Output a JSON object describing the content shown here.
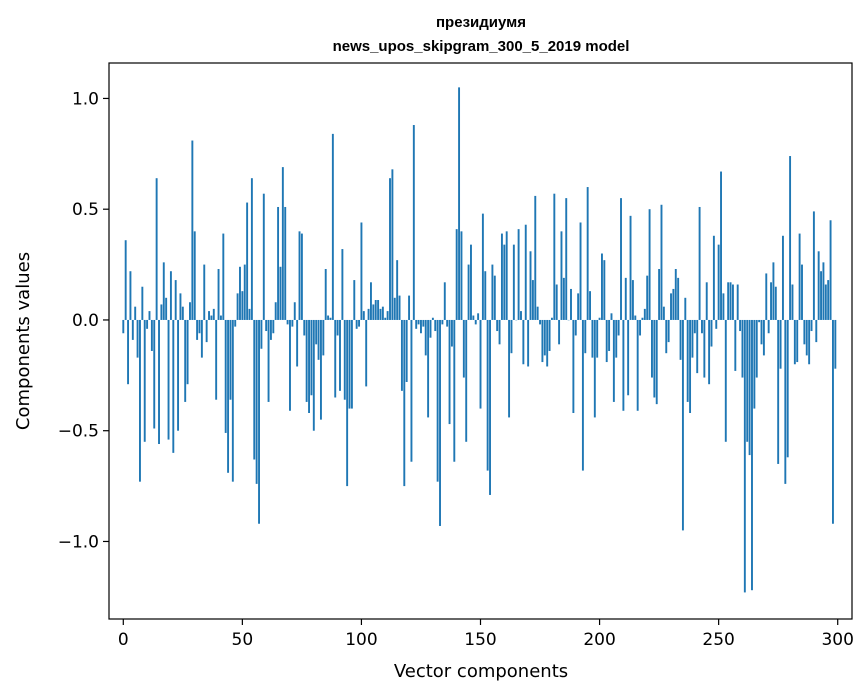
{
  "chart_data": {
    "type": "bar",
    "title_line1": "президиумя",
    "title_line2": "news_upos_skipgram_300_5_2019 model",
    "xlabel": "Vector components",
    "ylabel": "Components values",
    "xlim": [
      -6,
      306
    ],
    "ylim": [
      -1.35,
      1.16
    ],
    "xticks": [
      0,
      50,
      100,
      150,
      200,
      250,
      300
    ],
    "xtick_labels": [
      "0",
      "50",
      "100",
      "150",
      "200",
      "250",
      "300"
    ],
    "yticks": [
      -1.0,
      -0.5,
      0.0,
      0.5,
      1.0
    ],
    "ytick_labels": [
      "−1.0",
      "−0.5",
      "0.0",
      "0.5",
      "1.0"
    ],
    "bar_color": "#1f77b4",
    "values": [
      -0.06,
      0.36,
      -0.29,
      0.22,
      -0.09,
      0.06,
      -0.17,
      -0.73,
      0.15,
      -0.55,
      -0.04,
      0.04,
      -0.14,
      -0.49,
      0.64,
      -0.56,
      0.07,
      0.26,
      0.1,
      -0.54,
      0.22,
      -0.6,
      0.18,
      -0.5,
      0.12,
      0.06,
      -0.37,
      -0.29,
      0.08,
      0.81,
      0.4,
      -0.09,
      -0.06,
      -0.17,
      0.25,
      -0.1,
      0.04,
      0.02,
      0.05,
      -0.36,
      0.23,
      0.02,
      0.39,
      -0.51,
      -0.69,
      -0.36,
      -0.73,
      -0.03,
      0.12,
      0.24,
      0.13,
      0.25,
      0.53,
      0.05,
      0.64,
      -0.63,
      -0.74,
      -0.92,
      -0.13,
      0.57,
      -0.05,
      -0.37,
      -0.09,
      -0.06,
      0.08,
      0.51,
      0.24,
      0.69,
      0.51,
      -0.02,
      -0.41,
      -0.03,
      0.08,
      -0.21,
      0.4,
      0.39,
      -0.07,
      -0.37,
      -0.42,
      -0.34,
      -0.5,
      -0.11,
      -0.18,
      -0.45,
      -0.16,
      0.23,
      0.02,
      0.01,
      0.84,
      -0.35,
      -0.07,
      -0.32,
      0.32,
      -0.36,
      -0.75,
      -0.4,
      -0.4,
      0.18,
      -0.04,
      -0.03,
      0.44,
      0.04,
      -0.3,
      0.05,
      0.17,
      0.07,
      0.09,
      0.09,
      0.05,
      0.06,
      0.01,
      0.04,
      0.64,
      0.68,
      0.1,
      0.27,
      0.11,
      -0.32,
      -0.75,
      -0.28,
      0.11,
      -0.64,
      0.88,
      -0.04,
      -0.02,
      -0.06,
      -0.03,
      -0.16,
      -0.44,
      -0.08,
      0.01,
      -0.05,
      -0.73,
      -0.93,
      -0.02,
      0.17,
      -0.03,
      -0.47,
      -0.12,
      -0.64,
      0.41,
      1.05,
      0.4,
      -0.26,
      -0.55,
      0.25,
      0.34,
      0.02,
      -0.02,
      0.03,
      -0.4,
      0.48,
      0.22,
      -0.68,
      -0.79,
      0.25,
      0.2,
      -0.05,
      -0.11,
      0.39,
      0.34,
      0.4,
      -0.44,
      -0.15,
      0.34,
      0.0,
      0.41,
      0.04,
      -0.2,
      0.43,
      -0.21,
      0.31,
      0.18,
      0.56,
      0.06,
      -0.02,
      -0.19,
      -0.16,
      -0.21,
      -0.14,
      0.01,
      0.57,
      0.16,
      -0.11,
      0.4,
      0.19,
      0.55,
      0.0,
      0.14,
      -0.42,
      -0.07,
      0.12,
      0.44,
      -0.68,
      -0.15,
      0.6,
      0.13,
      -0.17,
      -0.44,
      -0.17,
      0.01,
      0.3,
      0.27,
      -0.19,
      -0.14,
      0.03,
      -0.37,
      -0.17,
      -0.07,
      0.55,
      -0.41,
      0.19,
      -0.34,
      0.47,
      0.18,
      0.02,
      -0.41,
      -0.07,
      0.01,
      0.05,
      0.2,
      0.5,
      -0.26,
      -0.35,
      -0.38,
      0.23,
      0.52,
      0.06,
      -0.15,
      -0.1,
      0.12,
      0.14,
      0.23,
      0.19,
      -0.18,
      -0.95,
      0.1,
      -0.37,
      -0.42,
      -0.17,
      -0.06,
      -0.24,
      0.51,
      -0.06,
      -0.26,
      0.17,
      -0.29,
      -0.12,
      0.38,
      -0.04,
      0.34,
      0.67,
      0.12,
      -0.55,
      0.17,
      0.17,
      0.16,
      -0.23,
      0.16,
      -0.05,
      -0.26,
      -1.23,
      -0.55,
      -0.61,
      -1.22,
      -0.4,
      -0.26,
      -0.01,
      -0.11,
      -0.16,
      0.21,
      -0.06,
      0.17,
      0.26,
      0.15,
      -0.65,
      -0.22,
      0.38,
      -0.74,
      -0.62,
      0.74,
      0.16,
      -0.2,
      -0.19,
      0.39,
      0.25,
      -0.11,
      -0.16,
      -0.2,
      -0.05,
      0.49,
      -0.1,
      0.31,
      0.22,
      0.26,
      0.16,
      0.18,
      0.45,
      -0.92,
      -0.22
    ]
  }
}
